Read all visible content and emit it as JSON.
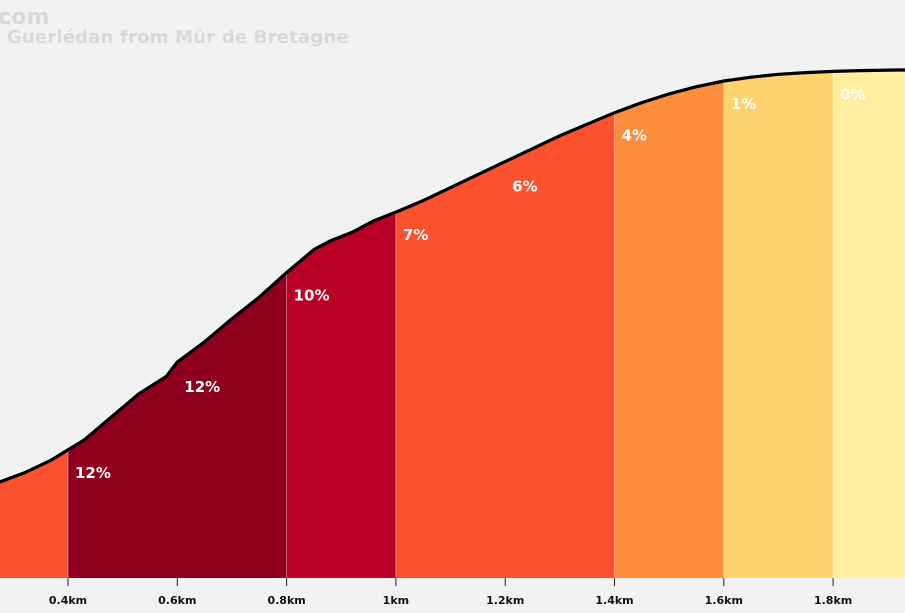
{
  "watermark": {
    "line1": "com",
    "line2": "e Guerlédan from Mûr de Bretagne"
  },
  "chart_data": {
    "type": "area",
    "title": "",
    "xlabel": "",
    "ylabel": "",
    "x_unit": "km",
    "xlim": [
      0.27,
      1.92
    ],
    "x_ticks": [
      {
        "value": 0.4,
        "label": "0.4km"
      },
      {
        "value": 0.6,
        "label": "0.6km"
      },
      {
        "value": 0.8,
        "label": "0.8km"
      },
      {
        "value": 1.0,
        "label": "1km"
      },
      {
        "value": 1.2,
        "label": "1.2km"
      },
      {
        "value": 1.4,
        "label": "1.4km"
      },
      {
        "value": 1.6,
        "label": "1.6km"
      },
      {
        "value": 1.8,
        "label": "1.8km"
      }
    ],
    "segments": [
      {
        "x_start": 0.27,
        "x_end": 0.4,
        "gradient_label": "",
        "color": "#fc512d"
      },
      {
        "x_start": 0.4,
        "x_end": 0.8,
        "gradient_label": "12%",
        "color": "#8f001e"
      },
      {
        "x_start": 0.8,
        "x_end": 1.0,
        "gradient_label": "10%",
        "color": "#bb0025"
      },
      {
        "x_start": 1.0,
        "x_end": 1.4,
        "gradient_label": "7%",
        "color": "#fc512d"
      },
      {
        "x_start": 1.4,
        "x_end": 1.6,
        "gradient_label": "4%",
        "color": "#fd8d3c"
      },
      {
        "x_start": 1.6,
        "x_end": 1.8,
        "gradient_label": "1%",
        "color": "#fed36e"
      },
      {
        "x_start": 1.8,
        "x_end": 1.92,
        "gradient_label": "0%",
        "color": "#ffeda0"
      }
    ],
    "extra_labels": [
      {
        "x": 0.6,
        "text": "12%"
      },
      {
        "x": 1.2,
        "text": "6%"
      }
    ],
    "profile": [
      {
        "x": 0.27,
        "y": 0.0
      },
      {
        "x": 0.32,
        "y": 3.5
      },
      {
        "x": 0.37,
        "y": 8.0
      },
      {
        "x": 0.4,
        "y": 11.5
      },
      {
        "x": 0.43,
        "y": 15.0
      },
      {
        "x": 0.48,
        "y": 23.0
      },
      {
        "x": 0.53,
        "y": 31.0
      },
      {
        "x": 0.58,
        "y": 37.0
      },
      {
        "x": 0.6,
        "y": 42.0
      },
      {
        "x": 0.65,
        "y": 49.0
      },
      {
        "x": 0.7,
        "y": 57.0
      },
      {
        "x": 0.75,
        "y": 64.5
      },
      {
        "x": 0.8,
        "y": 73.0
      },
      {
        "x": 0.85,
        "y": 81.0
      },
      {
        "x": 0.88,
        "y": 84.0
      },
      {
        "x": 0.92,
        "y": 87.0
      },
      {
        "x": 0.96,
        "y": 91.0
      },
      {
        "x": 1.0,
        "y": 94.0
      },
      {
        "x": 1.05,
        "y": 98.0
      },
      {
        "x": 1.1,
        "y": 102.5
      },
      {
        "x": 1.15,
        "y": 107.0
      },
      {
        "x": 1.2,
        "y": 111.5
      },
      {
        "x": 1.25,
        "y": 116.0
      },
      {
        "x": 1.3,
        "y": 120.5
      },
      {
        "x": 1.35,
        "y": 124.5
      },
      {
        "x": 1.4,
        "y": 128.5
      },
      {
        "x": 1.45,
        "y": 132.0
      },
      {
        "x": 1.5,
        "y": 135.0
      },
      {
        "x": 1.55,
        "y": 137.5
      },
      {
        "x": 1.6,
        "y": 139.5
      },
      {
        "x": 1.65,
        "y": 140.8
      },
      {
        "x": 1.7,
        "y": 141.8
      },
      {
        "x": 1.75,
        "y": 142.4
      },
      {
        "x": 1.8,
        "y": 142.8
      },
      {
        "x": 1.85,
        "y": 143.1
      },
      {
        "x": 1.92,
        "y": 143.3
      }
    ],
    "legend": "none",
    "grid": false
  }
}
